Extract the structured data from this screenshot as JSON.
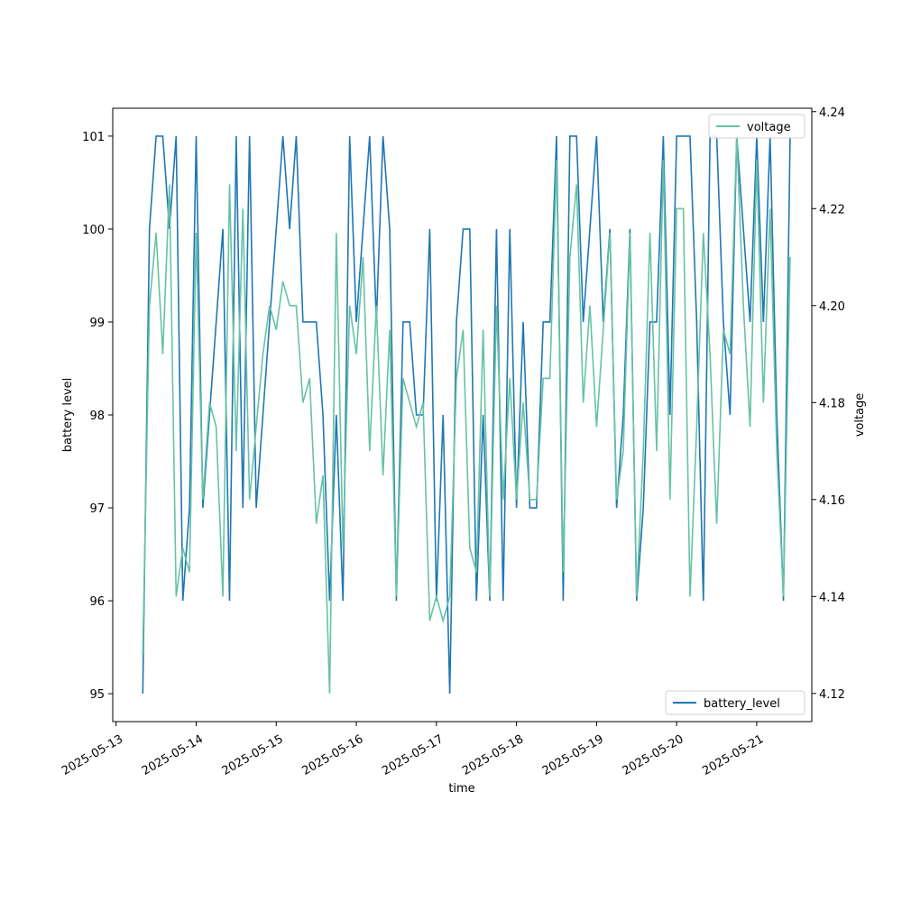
{
  "chart_data": {
    "type": "line",
    "xlabel": "time",
    "ylabel": "battery level",
    "y2label": "voltage",
    "x": [
      "2025-05-13T08:00",
      "2025-05-13T10:00",
      "2025-05-13T12:00",
      "2025-05-13T14:00",
      "2025-05-13T16:00",
      "2025-05-13T18:00",
      "2025-05-13T20:00",
      "2025-05-13T22:00",
      "2025-05-14T00:00",
      "2025-05-14T02:00",
      "2025-05-14T04:00",
      "2025-05-14T06:00",
      "2025-05-14T08:00",
      "2025-05-14T10:00",
      "2025-05-14T12:00",
      "2025-05-14T14:00",
      "2025-05-14T16:00",
      "2025-05-14T18:00",
      "2025-05-14T20:00",
      "2025-05-14T22:00",
      "2025-05-15T00:00",
      "2025-05-15T02:00",
      "2025-05-15T04:00",
      "2025-05-15T06:00",
      "2025-05-15T08:00",
      "2025-05-15T10:00",
      "2025-05-15T12:00",
      "2025-05-15T14:00",
      "2025-05-15T16:00",
      "2025-05-15T18:00",
      "2025-05-15T20:00",
      "2025-05-15T22:00",
      "2025-05-16T00:00",
      "2025-05-16T02:00",
      "2025-05-16T04:00",
      "2025-05-16T06:00",
      "2025-05-16T08:00",
      "2025-05-16T10:00",
      "2025-05-16T12:00",
      "2025-05-16T14:00",
      "2025-05-16T16:00",
      "2025-05-16T18:00",
      "2025-05-16T20:00",
      "2025-05-16T22:00",
      "2025-05-17T00:00",
      "2025-05-17T02:00",
      "2025-05-17T04:00",
      "2025-05-17T06:00",
      "2025-05-17T08:00",
      "2025-05-17T10:00",
      "2025-05-17T12:00",
      "2025-05-17T14:00",
      "2025-05-17T16:00",
      "2025-05-17T18:00",
      "2025-05-17T20:00",
      "2025-05-17T22:00",
      "2025-05-18T00:00",
      "2025-05-18T02:00",
      "2025-05-18T04:00",
      "2025-05-18T06:00",
      "2025-05-18T08:00",
      "2025-05-18T10:00",
      "2025-05-18T12:00",
      "2025-05-18T14:00",
      "2025-05-18T16:00",
      "2025-05-18T18:00",
      "2025-05-18T20:00",
      "2025-05-18T22:00",
      "2025-05-19T00:00",
      "2025-05-19T02:00",
      "2025-05-19T04:00",
      "2025-05-19T06:00",
      "2025-05-19T08:00",
      "2025-05-19T10:00",
      "2025-05-19T12:00",
      "2025-05-19T14:00",
      "2025-05-19T16:00",
      "2025-05-19T18:00",
      "2025-05-19T20:00",
      "2025-05-19T22:00",
      "2025-05-20T00:00",
      "2025-05-20T02:00",
      "2025-05-20T04:00",
      "2025-05-20T06:00",
      "2025-05-20T08:00",
      "2025-05-20T10:00",
      "2025-05-20T12:00",
      "2025-05-20T14:00",
      "2025-05-20T16:00",
      "2025-05-20T18:00",
      "2025-05-20T20:00",
      "2025-05-20T22:00",
      "2025-05-21T00:00",
      "2025-05-21T02:00",
      "2025-05-21T04:00",
      "2025-05-21T06:00",
      "2025-05-21T08:00",
      "2025-05-21T10:00"
    ],
    "series": [
      {
        "name": "battery_level",
        "color": "#1f77b4",
        "axis": "y",
        "legend": "lower right",
        "values": [
          95,
          100,
          101,
          101,
          100,
          101,
          96,
          97,
          101,
          97,
          98,
          99,
          100,
          96,
          101,
          97,
          101,
          97,
          98,
          99,
          100,
          101,
          100,
          101,
          99,
          99,
          99,
          98,
          96,
          98,
          96,
          101,
          99,
          100,
          101,
          99,
          101,
          100,
          96,
          99,
          99,
          98,
          98,
          100,
          96,
          98,
          95,
          99,
          100,
          100,
          96,
          98,
          96,
          100,
          96,
          100,
          97,
          99,
          97,
          97,
          99,
          99,
          101,
          96,
          101,
          101,
          99,
          100,
          101,
          99,
          100,
          97,
          98,
          100,
          96,
          97,
          99,
          99,
          101,
          98,
          101,
          101,
          101,
          99,
          96,
          101,
          101,
          99,
          98,
          101,
          100,
          99,
          101,
          99,
          101,
          98,
          96,
          101
        ]
      },
      {
        "name": "voltage",
        "color": "#66c2a5",
        "axis": "y2",
        "legend": "upper right",
        "values": [
          4.128,
          4.2,
          4.215,
          4.19,
          4.225,
          4.14,
          4.15,
          4.145,
          4.215,
          4.16,
          4.18,
          4.175,
          4.14,
          4.225,
          4.17,
          4.22,
          4.16,
          4.175,
          4.19,
          4.2,
          4.195,
          4.205,
          4.2,
          4.2,
          4.18,
          4.185,
          4.155,
          4.165,
          4.12,
          4.215,
          4.15,
          4.2,
          4.19,
          4.21,
          4.17,
          4.2,
          4.165,
          4.195,
          4.14,
          4.185,
          4.18,
          4.175,
          4.18,
          4.135,
          4.14,
          4.135,
          4.14,
          4.185,
          4.195,
          4.15,
          4.145,
          4.195,
          4.14,
          4.2,
          4.16,
          4.185,
          4.16,
          4.18,
          4.16,
          4.16,
          4.185,
          4.185,
          4.23,
          4.145,
          4.21,
          4.225,
          4.18,
          4.2,
          4.175,
          4.195,
          4.215,
          4.16,
          4.17,
          4.215,
          4.14,
          4.17,
          4.215,
          4.17,
          4.23,
          4.16,
          4.22,
          4.22,
          4.14,
          4.175,
          4.215,
          4.19,
          4.155,
          4.195,
          4.19,
          4.235,
          4.2,
          4.175,
          4.23,
          4.18,
          4.22,
          4.17,
          4.14,
          4.21
        ]
      }
    ],
    "xlim": [
      "2025-05-12T23:00",
      "2025-05-21T16:30"
    ],
    "xticks": [
      "2025-05-13",
      "2025-05-14",
      "2025-05-15",
      "2025-05-16",
      "2025-05-17",
      "2025-05-18",
      "2025-05-19",
      "2025-05-20",
      "2025-05-21"
    ],
    "ylim": [
      94.7,
      101.3
    ],
    "yticks": [
      95,
      96,
      97,
      98,
      99,
      100,
      101
    ],
    "y2lim": [
      4.1142,
      4.2407
    ],
    "y2ticks": [
      4.12,
      4.14,
      4.16,
      4.18,
      {
        "value": 4.2,
        "label": "4.20"
      },
      4.22,
      4.24
    ]
  }
}
